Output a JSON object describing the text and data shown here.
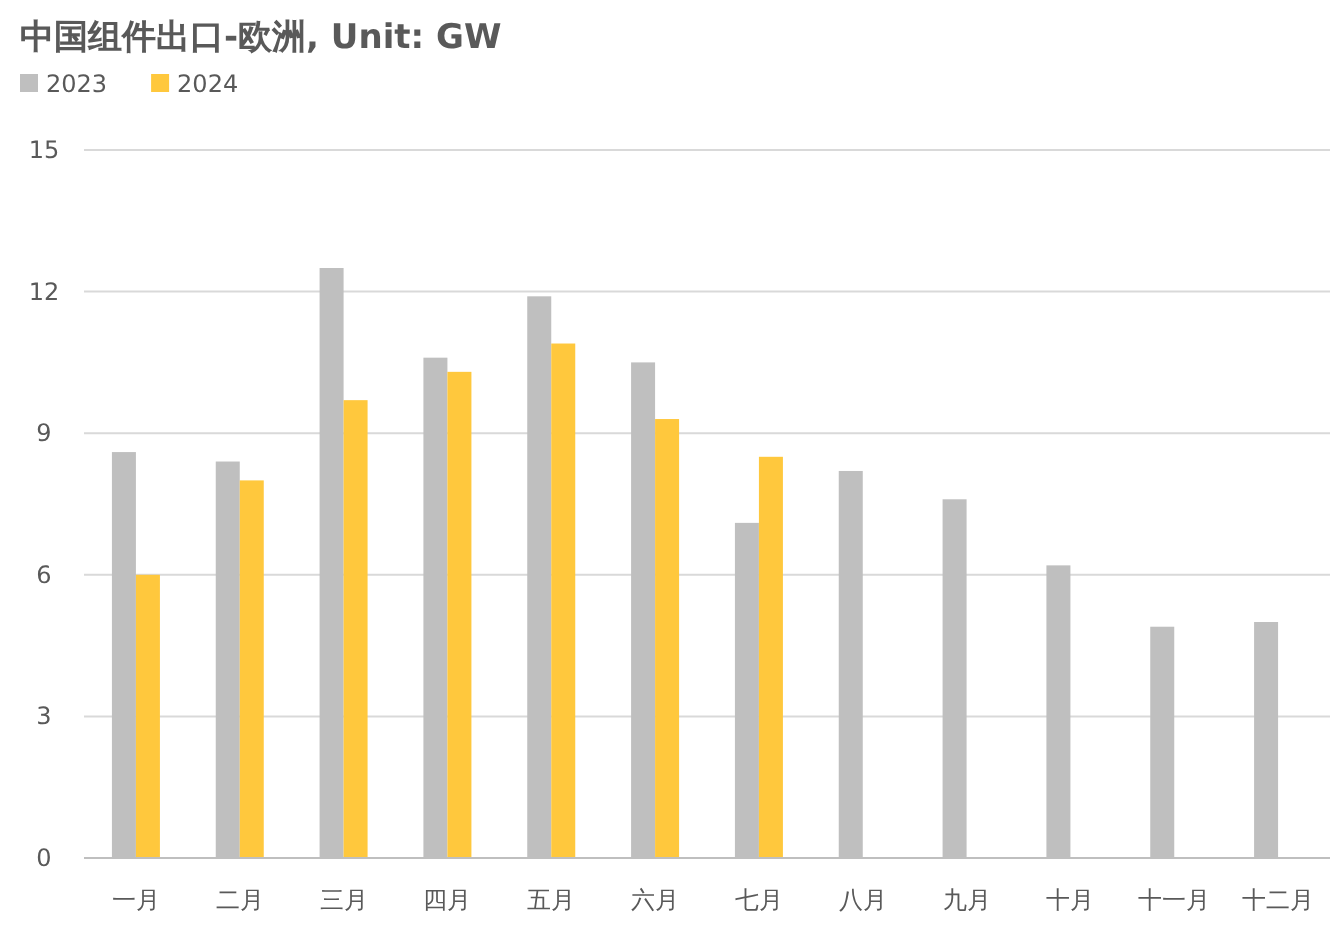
{
  "chart_data": {
    "type": "bar",
    "title": "中国组件出口-欧洲, Unit: GW",
    "categories": [
      "一月",
      "二月",
      "三月",
      "四月",
      "五月",
      "六月",
      "七月",
      "八月",
      "九月",
      "十月",
      "十一月",
      "十二月"
    ],
    "series": [
      {
        "name": "2023",
        "color": "#bfbfbf",
        "values": [
          8.6,
          8.4,
          12.5,
          10.6,
          11.9,
          10.5,
          7.1,
          8.2,
          7.6,
          6.2,
          4.9,
          5.0
        ]
      },
      {
        "name": "2024",
        "color": "#ffc83d",
        "values": [
          6.0,
          8.0,
          9.7,
          10.3,
          10.9,
          9.3,
          8.5,
          null,
          null,
          null,
          null,
          null
        ]
      }
    ],
    "ylim": [
      0,
      15
    ],
    "yticks": [
      0,
      3,
      6,
      9,
      12,
      15
    ],
    "grid": "y",
    "legend": "top left"
  }
}
